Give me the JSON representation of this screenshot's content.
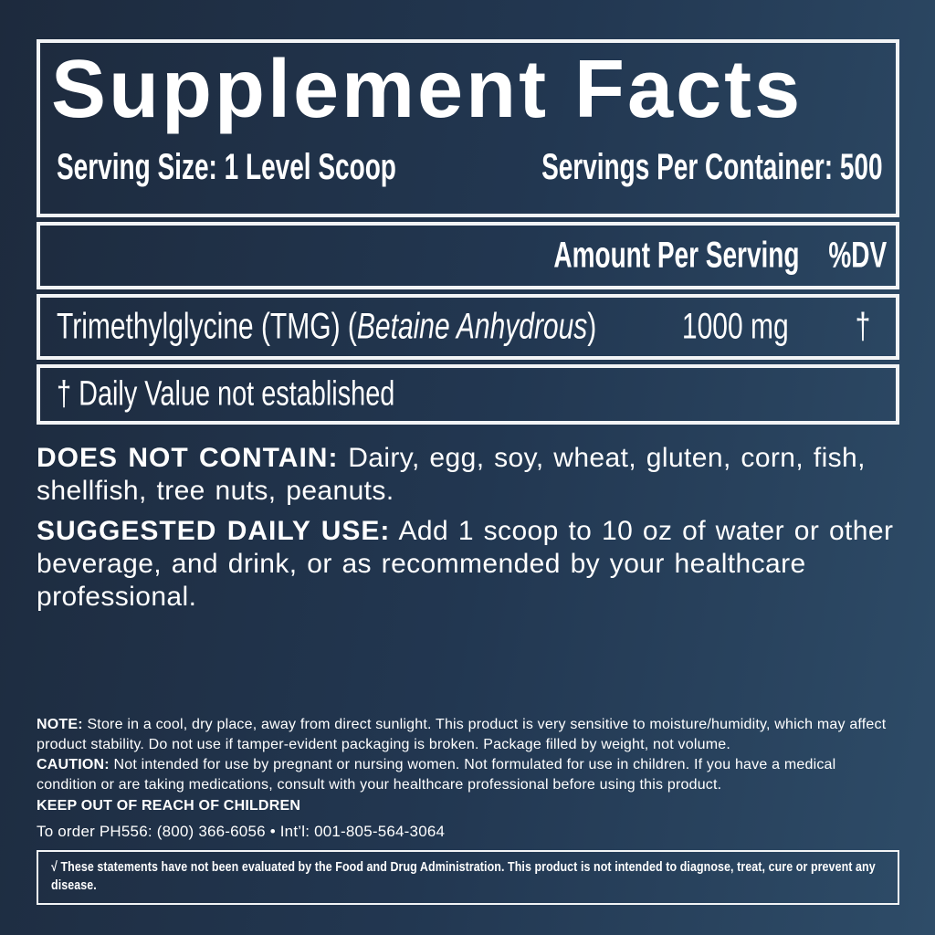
{
  "colors": {
    "background_left": "#1d2a3d",
    "background_right": "#2e4c68",
    "text": "#ffffff",
    "border": "#f2f4f6"
  },
  "supplement_facts": {
    "title": "Supplement Facts",
    "serving_size": "Serving Size: 1 Level Scoop",
    "servings_per_container": "Servings Per Container: 500",
    "columns": {
      "amount_per_serving": "Amount Per Serving",
      "percent_dv": "%DV"
    },
    "rows": [
      {
        "name_prefix": "Trimethylglycine (TMG) (",
        "name_italic": "Betaine Anhydrous",
        "name_suffix": ")",
        "amount": "1000 mg",
        "dv": "†"
      }
    ],
    "footnote": "† Daily Value not established"
  },
  "paragraphs": [
    {
      "label": "DOES NOT CONTAIN:",
      "text": "Dairy, egg, soy, wheat, gluten, corn, fish, shellfish, tree nuts, peanuts."
    },
    {
      "label": "SUGGESTED DAILY USE:",
      "text": "Add 1 scoop to 10 oz of water or other beverage, and drink, or as recommended by your healthcare professional."
    }
  ],
  "small_print": {
    "note_label": "NOTE:",
    "note_text": "Store in a cool, dry place, away from direct sunlight. This product is very sensitive to moisture/humidity, which may affect product stability. Do not use if tamper-evident packaging is broken. Package filled by weight, not volume.",
    "caution_label": "CAUTION:",
    "caution_text": "Not intended for use by pregnant or nursing women. Not formulated for use in children. If you have a medical condition or are taking medications, consult with your healthcare professional before using this product.",
    "keep_out": "KEEP OUT OF REACH OF CHILDREN"
  },
  "order_line": "To order PH556: (800) 366-6056 • Int’l: 001-805-564-3064",
  "disclaimer": "√ These statements have not been evaluated by the Food and Drug Administration. This product is not intended to diagnose, treat, cure or prevent any disease."
}
